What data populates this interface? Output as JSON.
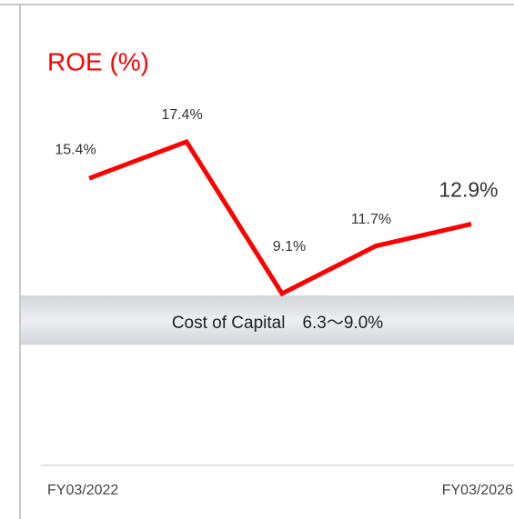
{
  "chart_data": {
    "type": "line",
    "title": "ROE (%)",
    "categories": [
      "FY03/2022",
      null,
      null,
      null,
      "FY03/2026"
    ],
    "series": [
      {
        "name": "ROE",
        "color": "#ff0000",
        "values": [
          15.4,
          17.4,
          9.1,
          11.7,
          12.9
        ],
        "value_labels": [
          "15.4%",
          "17.4%",
          "9.1%",
          "11.7%",
          "12.9%"
        ]
      }
    ],
    "ylim": [
      0,
      20
    ],
    "band": {
      "label": "Cost of Capital　6.3～9.0%",
      "low": 6.3,
      "high": 9.0
    }
  }
}
